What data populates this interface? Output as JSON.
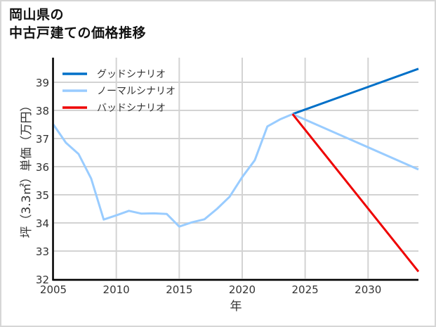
{
  "title": {
    "line1": "岡山県の",
    "line2": "中古戸建ての価格推移"
  },
  "chart_data": {
    "type": "line",
    "title": "岡山県の中古戸建ての価格推移",
    "xlabel": "年",
    "ylabel": "坪（3.3㎡）単価（万円）",
    "xlim": [
      2005,
      2034
    ],
    "ylim": [
      32,
      39.9
    ],
    "xticks": [
      2005,
      2010,
      2015,
      2020,
      2025,
      2030
    ],
    "yticks": [
      32,
      33,
      34,
      35,
      36,
      37,
      38,
      39
    ],
    "grid": true,
    "legend_position": "upper left",
    "series": [
      {
        "name": "グッドシナリオ",
        "color": "#0070c8",
        "x": [
          2024,
          2034
        ],
        "values": [
          37.87,
          39.48
        ]
      },
      {
        "name": "ノーマルシナリオ",
        "color": "#99ccff",
        "x": [
          2005,
          2006,
          2007,
          2008,
          2009,
          2010,
          2011,
          2012,
          2013,
          2014,
          2015,
          2016,
          2017,
          2018,
          2019,
          2020,
          2021,
          2022,
          2023,
          2024,
          2034
        ],
        "values": [
          37.5,
          36.85,
          36.45,
          35.58,
          34.12,
          34.27,
          34.43,
          34.33,
          34.34,
          34.32,
          33.87,
          34.02,
          34.13,
          34.5,
          34.93,
          35.63,
          36.23,
          37.43,
          37.68,
          37.87,
          35.9
        ]
      },
      {
        "name": "バッドシナリオ",
        "color": "#ee0000",
        "x": [
          2024,
          2034
        ],
        "values": [
          37.87,
          32.27
        ]
      }
    ]
  }
}
